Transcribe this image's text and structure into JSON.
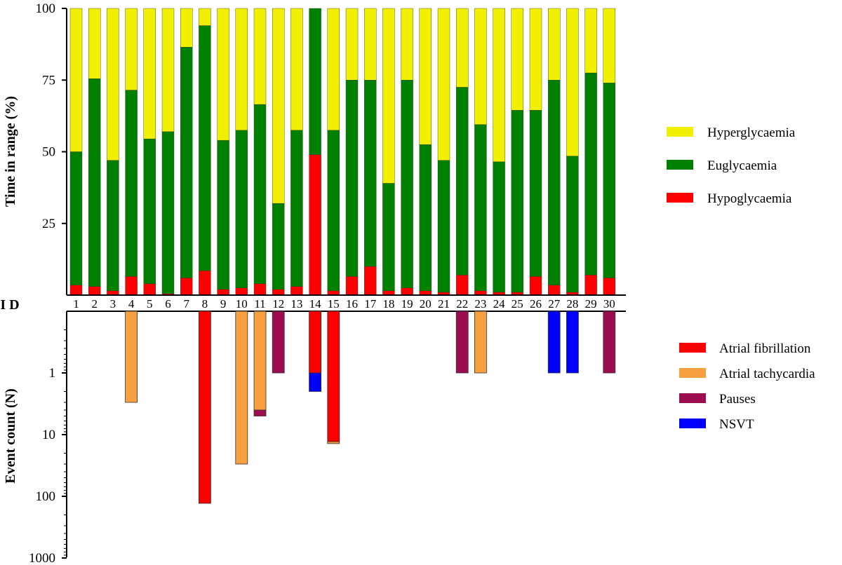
{
  "chart_data": [
    {
      "type": "bar",
      "stacked": true,
      "ylabel": "Time in range (%)",
      "ylim": [
        0,
        100
      ],
      "yticks": [
        25,
        50,
        75,
        100
      ],
      "xlabel": "I D",
      "categories": [
        "1",
        "2",
        "3",
        "4",
        "5",
        "6",
        "7",
        "8",
        "9",
        "10",
        "11",
        "12",
        "13",
        "14",
        "15",
        "16",
        "17",
        "18",
        "19",
        "20",
        "21",
        "22",
        "23",
        "24",
        "25",
        "26",
        "27",
        "28",
        "29",
        "30"
      ],
      "legend_position": "right",
      "series": [
        {
          "name": "Hypoglycaemia",
          "color": "#ff0000",
          "values": [
            3.5,
            3,
            1.5,
            6.5,
            4,
            0.5,
            6,
            8.5,
            2,
            2.5,
            4,
            2,
            3,
            49,
            1.5,
            6.5,
            10,
            1.5,
            2.5,
            1.5,
            1,
            7,
            1.5,
            1,
            1,
            6.5,
            3.5,
            1,
            7,
            6
          ]
        },
        {
          "name": "Euglycaemia",
          "color": "#008000",
          "values": [
            46.5,
            72.5,
            45.5,
            65,
            50.5,
            56.5,
            80.5,
            85.5,
            52,
            55,
            62.5,
            30,
            54.5,
            51,
            56,
            68.5,
            65,
            37.5,
            72.5,
            51,
            46,
            65.5,
            58,
            45.5,
            63.5,
            58,
            71.5,
            47.5,
            70.5,
            68
          ]
        },
        {
          "name": "Hyperglycaemia",
          "color": "#f0f000",
          "values": [
            50,
            24.5,
            53,
            28.5,
            45.5,
            43,
            13.5,
            6,
            46,
            42.5,
            33.5,
            68,
            42.5,
            0,
            42.5,
            25,
            25,
            61,
            25,
            47.5,
            53,
            27.5,
            40.5,
            53.5,
            35.5,
            35.5,
            25,
            51.5,
            22.5,
            26
          ]
        }
      ],
      "legend_order": [
        "Hyperglycaemia",
        "Euglycaemia",
        "Hypoglycaemia"
      ]
    },
    {
      "type": "bar",
      "stacked": true,
      "inverted": true,
      "scale": "log",
      "ylabel": "Event count (N)",
      "ylim": [
        0.1,
        1000
      ],
      "yticks": [
        1,
        10,
        100,
        1000
      ],
      "categories": [
        "1",
        "2",
        "3",
        "4",
        "5",
        "6",
        "7",
        "8",
        "9",
        "10",
        "11",
        "12",
        "13",
        "14",
        "15",
        "16",
        "17",
        "18",
        "19",
        "20",
        "21",
        "22",
        "23",
        "24",
        "25",
        "26",
        "27",
        "28",
        "29",
        "30"
      ],
      "legend_position": "right",
      "series": [
        {
          "name": "Atrial fibrillation",
          "color": "#ff0000",
          "values": [
            0,
            0,
            0,
            0,
            0,
            0,
            0,
            130,
            0,
            0,
            0,
            0,
            0,
            1,
            13,
            0,
            0,
            0,
            0,
            0,
            0,
            0,
            0,
            0,
            0,
            0,
            0,
            0,
            0,
            0
          ]
        },
        {
          "name": "Atrial tachycardia",
          "color": "#f8a040",
          "values": [
            0,
            0,
            0,
            3,
            0,
            0,
            0,
            0,
            0,
            30,
            4,
            0,
            0,
            0,
            1,
            0,
            0,
            0,
            0,
            0,
            0,
            0,
            1,
            0,
            0,
            0,
            0,
            0,
            0,
            0
          ]
        },
        {
          "name": "Pauses",
          "color": "#9b0d4f",
          "values": [
            0,
            0,
            0,
            0,
            0,
            0,
            0,
            0,
            0,
            0,
            1,
            1,
            0,
            0,
            0,
            0,
            0,
            0,
            0,
            0,
            0,
            1,
            0,
            0,
            0,
            0,
            0,
            0,
            0,
            1
          ]
        },
        {
          "name": "NSVT",
          "color": "#0000ff",
          "values": [
            0,
            0,
            0,
            0,
            0,
            0,
            0,
            0,
            0,
            0,
            0,
            0,
            0,
            1,
            0,
            0,
            0,
            0,
            0,
            0,
            0,
            0,
            0,
            0,
            0,
            0,
            1,
            1,
            0,
            0
          ]
        }
      ]
    }
  ]
}
